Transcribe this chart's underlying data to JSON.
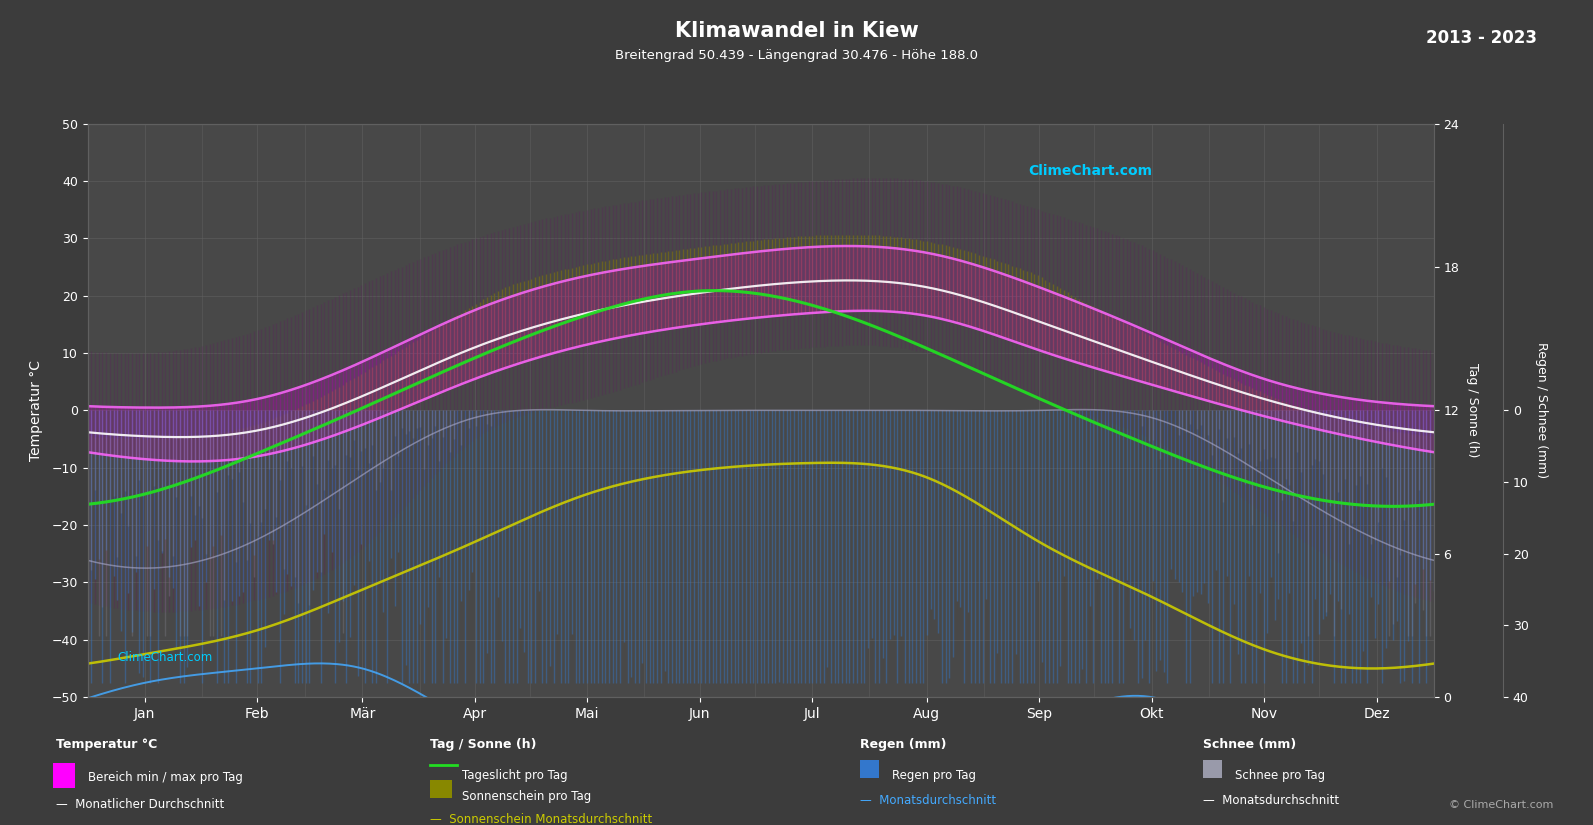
{
  "title": "Klimawandel in Kiew",
  "subtitle": "Breitengrad 50.439 - Längengrad 30.476 - Höhe 188.0",
  "year_range": "2013 - 2023",
  "bg_color": "#3c3c3c",
  "plot_bg_color": "#484848",
  "grid_color": "#606060",
  "text_color": "#ffffff",
  "months": [
    "Jan",
    "Feb",
    "Mär",
    "Apr",
    "Mai",
    "Jun",
    "Jul",
    "Aug",
    "Sep",
    "Okt",
    "Nov",
    "Dez"
  ],
  "month_positions": [
    15.5,
    46,
    74.5,
    105,
    135.5,
    166,
    196.5,
    227.5,
    258,
    288.5,
    319,
    349.5
  ],
  "month_boundaries": [
    0,
    31,
    59,
    90,
    120,
    151,
    181,
    212,
    243,
    273,
    304,
    334,
    365
  ],
  "temp_ylim": [
    -50,
    50
  ],
  "temp_min_monthly": [
    -8.5,
    -8.0,
    -2.5,
    5.5,
    11.5,
    15.0,
    17.0,
    16.5,
    10.5,
    4.5,
    -1.0,
    -5.5
  ],
  "temp_max_monthly": [
    0.5,
    2.0,
    8.5,
    17.5,
    23.5,
    26.5,
    28.5,
    27.5,
    21.5,
    13.5,
    5.5,
    1.5
  ],
  "temp_mean_monthly": [
    -4.5,
    -3.5,
    2.5,
    11.0,
    17.0,
    20.5,
    22.5,
    21.5,
    15.5,
    8.5,
    2.0,
    -2.5
  ],
  "daylight_monthly": [
    8.5,
    10.2,
    12.1,
    14.2,
    16.0,
    17.0,
    16.4,
    14.6,
    12.5,
    10.5,
    8.8,
    8.0
  ],
  "sunshine_monthly": [
    1.8,
    2.8,
    4.5,
    6.5,
    8.5,
    9.5,
    9.8,
    9.2,
    6.5,
    4.2,
    2.0,
    1.2
  ],
  "rain_monthly_mm": [
    35,
    35,
    35,
    45,
    55,
    75,
    65,
    55,
    45,
    40,
    45,
    45
  ],
  "snow_monthly_mm": [
    25,
    20,
    10,
    2,
    0,
    0,
    0,
    0,
    0,
    2,
    10,
    20
  ],
  "rain_avg_monthly_mm": [
    38,
    36,
    36,
    44,
    55,
    72,
    63,
    52,
    44,
    40,
    46,
    43
  ],
  "snow_avg_monthly_mm": [
    22,
    18,
    9,
    1,
    0,
    0,
    0,
    0,
    0,
    1,
    9,
    18
  ],
  "temp_min_extreme": [
    -35,
    -33,
    -24,
    -5,
    2,
    8,
    11,
    10,
    2,
    -5,
    -18,
    -30
  ],
  "temp_max_extreme": [
    10,
    14,
    22,
    30,
    35,
    38,
    40,
    40,
    35,
    28,
    18,
    12
  ],
  "rain_scale_max": 40,
  "sun_scale_max": 24,
  "copyright": "© ClimeChart.com"
}
